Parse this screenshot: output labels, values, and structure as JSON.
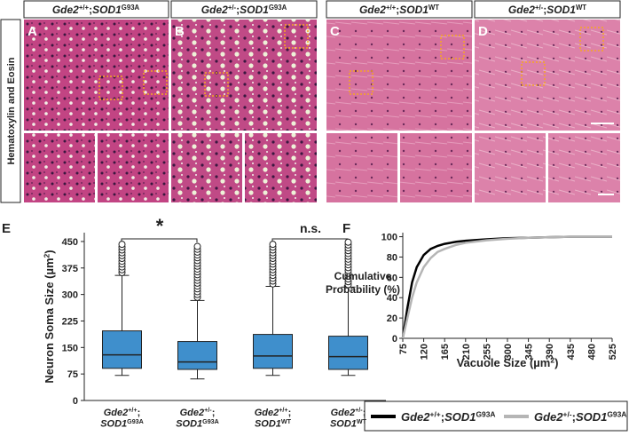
{
  "headers": [
    {
      "gene": "Gde2",
      "gene_sup": "+/+",
      "sep": ";",
      "sod": "SOD1",
      "sod_sup": "G93A"
    },
    {
      "gene": "Gde2",
      "gene_sup": "+/-",
      "sep": ";",
      "sod": "SOD1",
      "sod_sup": "G93A"
    },
    {
      "gene": "Gde2",
      "gene_sup": "+/+",
      "sep": ";",
      "sod": "SOD1",
      "sod_sup": "WT"
    },
    {
      "gene": "Gde2",
      "gene_sup": "+/-",
      "sep": ";",
      "sod": "SOD1",
      "sod_sup": "WT"
    }
  ],
  "side_label": "Hematoxylin and Eosin",
  "panel_letters": [
    "A",
    "B",
    "C",
    "D",
    "E",
    "F"
  ],
  "chart_data": [
    {
      "type": "box",
      "ylabel": {
        "text": "Neuron Soma Size (µm",
        "sup": "2",
        "end": ")"
      },
      "categories": [
        {
          "gene": "Gde2",
          "gene_sup": "+/+",
          "sep": ";",
          "sod": "SOD1",
          "sod_sup": "G93A"
        },
        {
          "gene": "Gde2",
          "gene_sup": "+/-",
          "sep": ";",
          "sod": "SOD1",
          "sod_sup": "G93A"
        },
        {
          "gene": "Gde2",
          "gene_sup": "+/+",
          "sep": ";",
          "sod": "SOD1",
          "sod_sup": "WT"
        },
        {
          "gene": "Gde2",
          "gene_sup": "+/-",
          "sep": ";",
          "sod": "SOD1",
          "sod_sup": "WT"
        }
      ],
      "whisker_low": [
        71,
        61,
        71,
        71
      ],
      "q1": [
        91,
        88,
        91,
        88
      ],
      "median": [
        129,
        109,
        126,
        124
      ],
      "q3": [
        197,
        167,
        187,
        182
      ],
      "whisker_high": [
        354,
        283,
        323,
        321
      ],
      "outliers": [
        [
          362,
          370,
          378,
          386,
          394,
          402,
          410,
          418,
          426,
          434,
          442
        ],
        [
          292,
          300,
          308,
          316,
          324,
          332,
          340,
          348,
          356,
          364,
          372,
          380,
          388,
          396,
          404,
          412,
          420,
          428,
          436
        ],
        [
          330,
          338,
          346,
          354,
          362,
          370,
          378,
          386,
          394,
          402,
          410,
          418,
          426,
          434,
          442
        ],
        [
          328,
          336,
          344,
          352,
          360,
          368,
          376,
          384,
          392,
          400,
          408,
          416,
          424,
          432,
          440,
          448
        ]
      ],
      "color": "#3f8fcc",
      "annotations": [
        "*",
        "n.s."
      ],
      "ylim": [
        0,
        475
      ],
      "yticks": [
        0,
        75,
        150,
        225,
        300,
        375,
        450
      ]
    },
    {
      "type": "line",
      "xlabel": {
        "text": "Vacuole Size (µm",
        "sup": "2",
        "end": ")"
      },
      "ylabel": [
        "Cumulative",
        "Probability (%)"
      ],
      "x": [
        75,
        85,
        95,
        105,
        120,
        135,
        150,
        165,
        190,
        210,
        255,
        300,
        345,
        390,
        435,
        525
      ],
      "series": [
        {
          "label": {
            "gene": "Gde2",
            "gene_sup": "+/+",
            "sep": ";",
            "sod": "SOD1",
            "sod_sup": "G93A"
          },
          "color": "#000000",
          "values": [
            0,
            30,
            55,
            70,
            82,
            88,
            91,
            93,
            95,
            96,
            97.5,
            98.5,
            99,
            99.5,
            100,
            100
          ]
        },
        {
          "label": {
            "gene": "Gde2",
            "gene_sup": "+/-",
            "sep": ";",
            "sod": "SOD1",
            "sod_sup": "G93A"
          },
          "color": "#b5b5b5",
          "values": [
            0,
            20,
            40,
            55,
            70,
            79,
            85,
            88,
            92,
            94,
            96.5,
            98,
            99,
            99.5,
            100,
            100
          ]
        }
      ],
      "xlim": [
        75,
        525
      ],
      "xticks": [
        75,
        120,
        165,
        210,
        255,
        300,
        345,
        390,
        435,
        480,
        525
      ],
      "ylim": [
        0,
        104
      ],
      "yticks": [
        0,
        20,
        40,
        60,
        80,
        100
      ]
    }
  ]
}
